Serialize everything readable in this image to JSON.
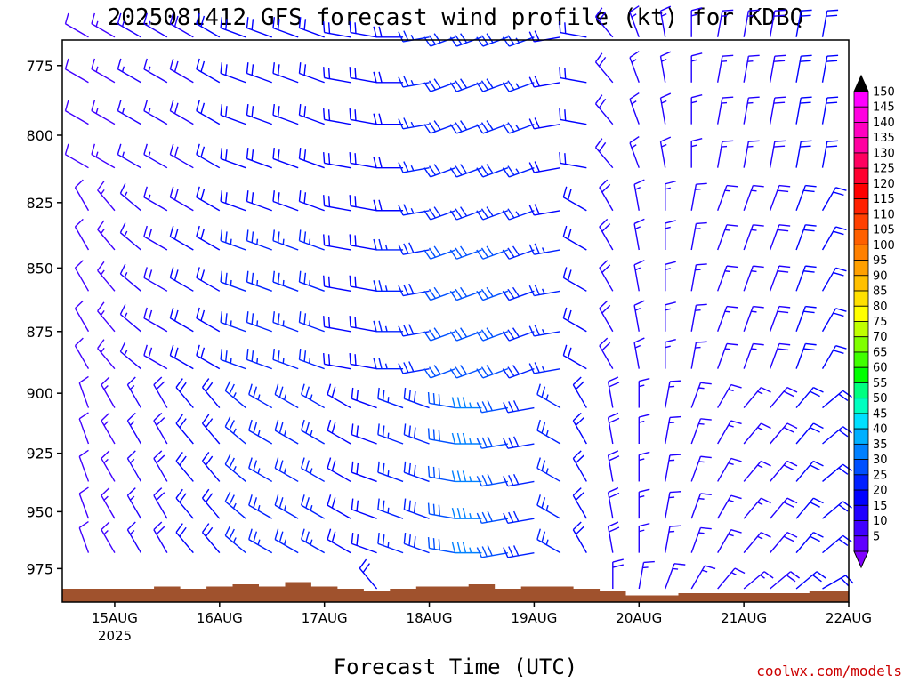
{
  "chart_data": {
    "type": "wind-barb-profile",
    "title": "2025081412 GFS forecast wind profile (kt) for KDBQ",
    "xlabel": "Forecast Time (UTC)",
    "x_tick_labels": [
      "15AUG",
      "16AUG",
      "17AUG",
      "18AUG",
      "19AUG",
      "20AUG",
      "21AUG",
      "22AUG"
    ],
    "x_tick_days": [
      15,
      16,
      17,
      18,
      19,
      20,
      21,
      22
    ],
    "x_sub_label": "2025",
    "x_range_days": [
      14.5,
      22.0
    ],
    "y_tick_labels": [
      "775",
      "800",
      "825",
      "850",
      "875",
      "900",
      "925",
      "950",
      "975"
    ],
    "y_ticks": [
      775,
      800,
      825,
      850,
      875,
      900,
      925,
      950,
      975
    ],
    "y_range": [
      766,
      990
    ],
    "y_axis_inverted": true,
    "y_scale": "log-pressure",
    "levels_hpa": [
      765,
      781,
      796,
      812,
      828,
      843,
      859,
      875,
      890,
      906,
      921,
      937,
      953,
      968,
      984
    ],
    "times_days": [
      14.5,
      14.75,
      15.0,
      15.25,
      15.5,
      15.75,
      16.0,
      16.25,
      16.5,
      16.75,
      17.0,
      17.25,
      17.5,
      17.75,
      18.0,
      18.25,
      18.5,
      18.75,
      19.0,
      19.25,
      19.5,
      19.75,
      20.0,
      20.25,
      20.5,
      20.75,
      21.0,
      21.25,
      21.5,
      21.75,
      22.0
    ],
    "wind_direction_deg": [
      [
        300,
        300,
        300,
        300,
        300,
        300,
        300,
        290,
        290,
        290,
        290,
        280,
        280,
        270,
        260,
        250,
        250,
        250,
        250,
        260,
        280,
        320,
        340,
        350,
        360,
        10,
        10,
        10,
        10,
        10,
        10
      ],
      [
        300,
        300,
        300,
        300,
        300,
        300,
        300,
        290,
        290,
        290,
        290,
        280,
        280,
        270,
        260,
        250,
        250,
        250,
        250,
        260,
        280,
        320,
        340,
        350,
        360,
        10,
        10,
        10,
        10,
        10,
        10
      ],
      [
        300,
        300,
        300,
        300,
        300,
        300,
        300,
        290,
        290,
        290,
        290,
        280,
        280,
        270,
        260,
        250,
        250,
        250,
        250,
        260,
        280,
        320,
        340,
        350,
        360,
        10,
        10,
        10,
        10,
        10,
        10
      ],
      [
        300,
        300,
        300,
        300,
        300,
        300,
        300,
        290,
        290,
        290,
        290,
        280,
        280,
        270,
        260,
        250,
        250,
        250,
        250,
        260,
        280,
        320,
        340,
        350,
        360,
        10,
        10,
        10,
        10,
        10,
        10
      ],
      [
        330,
        330,
        320,
        310,
        300,
        300,
        300,
        290,
        290,
        290,
        290,
        280,
        280,
        270,
        260,
        250,
        250,
        250,
        250,
        260,
        300,
        330,
        350,
        360,
        10,
        20,
        20,
        20,
        20,
        30,
        30
      ],
      [
        330,
        330,
        320,
        310,
        300,
        300,
        300,
        290,
        290,
        290,
        290,
        280,
        280,
        270,
        260,
        250,
        250,
        250,
        250,
        260,
        300,
        330,
        350,
        360,
        10,
        20,
        20,
        20,
        20,
        30,
        30
      ],
      [
        330,
        330,
        320,
        310,
        300,
        300,
        300,
        290,
        290,
        290,
        290,
        280,
        280,
        270,
        260,
        250,
        250,
        250,
        250,
        260,
        300,
        330,
        350,
        360,
        10,
        20,
        20,
        20,
        20,
        30,
        30
      ],
      [
        330,
        330,
        320,
        310,
        300,
        300,
        300,
        290,
        290,
        290,
        290,
        280,
        280,
        270,
        260,
        250,
        250,
        250,
        250,
        260,
        300,
        330,
        350,
        360,
        10,
        20,
        20,
        20,
        20,
        30,
        30
      ],
      [
        330,
        330,
        320,
        310,
        300,
        300,
        300,
        290,
        290,
        290,
        290,
        280,
        280,
        270,
        260,
        250,
        250,
        250,
        250,
        260,
        300,
        330,
        350,
        360,
        10,
        20,
        20,
        20,
        20,
        30,
        30
      ],
      [
        340,
        340,
        330,
        330,
        330,
        320,
        320,
        310,
        300,
        300,
        300,
        300,
        290,
        290,
        290,
        280,
        270,
        260,
        260,
        300,
        330,
        350,
        360,
        10,
        20,
        30,
        40,
        40,
        40,
        50,
        50
      ],
      [
        340,
        340,
        330,
        330,
        330,
        320,
        320,
        310,
        300,
        300,
        300,
        300,
        290,
        290,
        290,
        280,
        270,
        260,
        260,
        300,
        330,
        350,
        360,
        10,
        20,
        30,
        40,
        40,
        40,
        50,
        50
      ],
      [
        340,
        340,
        330,
        330,
        330,
        320,
        320,
        310,
        300,
        300,
        300,
        300,
        290,
        290,
        290,
        280,
        270,
        260,
        260,
        300,
        330,
        350,
        360,
        10,
        20,
        30,
        40,
        40,
        40,
        50,
        50
      ],
      [
        340,
        340,
        330,
        330,
        330,
        320,
        320,
        310,
        300,
        300,
        300,
        300,
        290,
        290,
        290,
        280,
        270,
        260,
        260,
        300,
        330,
        350,
        360,
        10,
        20,
        30,
        40,
        40,
        40,
        50,
        50
      ],
      [
        340,
        340,
        330,
        330,
        330,
        320,
        320,
        310,
        300,
        300,
        300,
        300,
        290,
        290,
        290,
        280,
        270,
        260,
        260,
        300,
        330,
        350,
        360,
        10,
        20,
        30,
        40,
        40,
        40,
        50,
        50
      ],
      [
        340,
        340,
        340,
        340,
        340,
        340,
        340,
        330,
        330,
        330,
        330,
        330,
        320,
        320,
        320,
        310,
        300,
        300,
        300,
        320,
        340,
        360,
        10,
        20,
        30,
        40,
        50,
        50,
        50,
        60,
        60
      ]
    ],
    "wind_speed_kt": [
      [
        10,
        12,
        14,
        15,
        16,
        18,
        20,
        22,
        22,
        22,
        22,
        20,
        20,
        22,
        25,
        28,
        28,
        28,
        25,
        22,
        20,
        18,
        15,
        15,
        15,
        15,
        15,
        18,
        20,
        20,
        20
      ],
      [
        10,
        12,
        14,
        15,
        16,
        18,
        20,
        22,
        22,
        22,
        22,
        20,
        20,
        22,
        25,
        28,
        28,
        28,
        25,
        22,
        20,
        18,
        15,
        15,
        15,
        15,
        15,
        18,
        20,
        20,
        20
      ],
      [
        10,
        12,
        14,
        15,
        16,
        18,
        20,
        22,
        22,
        22,
        22,
        20,
        20,
        22,
        25,
        28,
        28,
        28,
        25,
        22,
        20,
        18,
        15,
        15,
        15,
        15,
        15,
        18,
        20,
        20,
        20
      ],
      [
        10,
        12,
        14,
        15,
        16,
        18,
        20,
        22,
        22,
        22,
        22,
        20,
        20,
        22,
        25,
        28,
        28,
        28,
        25,
        22,
        20,
        18,
        15,
        15,
        15,
        15,
        15,
        18,
        20,
        20,
        20
      ],
      [
        10,
        12,
        14,
        15,
        16,
        18,
        20,
        22,
        22,
        22,
        22,
        20,
        20,
        22,
        25,
        28,
        28,
        28,
        25,
        22,
        20,
        18,
        15,
        15,
        15,
        15,
        15,
        18,
        20,
        20,
        20
      ],
      [
        10,
        12,
        14,
        15,
        18,
        20,
        22,
        25,
        25,
        25,
        25,
        22,
        22,
        25,
        28,
        30,
        30,
        30,
        28,
        25,
        20,
        18,
        15,
        15,
        15,
        15,
        15,
        18,
        20,
        20,
        20
      ],
      [
        10,
        12,
        14,
        15,
        18,
        20,
        22,
        25,
        25,
        25,
        25,
        22,
        22,
        25,
        28,
        30,
        30,
        30,
        28,
        25,
        20,
        18,
        15,
        15,
        15,
        15,
        15,
        18,
        20,
        20,
        20
      ],
      [
        10,
        12,
        14,
        15,
        18,
        20,
        22,
        25,
        25,
        25,
        25,
        22,
        22,
        25,
        28,
        30,
        30,
        30,
        28,
        25,
        20,
        18,
        15,
        15,
        15,
        15,
        15,
        18,
        20,
        20,
        20
      ],
      [
        10,
        12,
        14,
        15,
        18,
        20,
        22,
        25,
        25,
        25,
        25,
        22,
        22,
        25,
        28,
        30,
        30,
        30,
        28,
        25,
        20,
        18,
        15,
        15,
        15,
        15,
        15,
        18,
        20,
        20,
        20
      ],
      [
        10,
        12,
        14,
        15,
        18,
        20,
        22,
        25,
        25,
        25,
        25,
        22,
        22,
        25,
        28,
        32,
        35,
        32,
        28,
        25,
        20,
        18,
        15,
        15,
        15,
        15,
        15,
        18,
        20,
        20,
        20
      ],
      [
        10,
        12,
        14,
        15,
        18,
        20,
        22,
        25,
        25,
        25,
        25,
        22,
        22,
        25,
        28,
        32,
        35,
        32,
        28,
        25,
        20,
        18,
        15,
        15,
        15,
        15,
        15,
        18,
        20,
        20,
        20
      ],
      [
        10,
        12,
        14,
        15,
        18,
        20,
        22,
        25,
        25,
        25,
        25,
        22,
        22,
        25,
        28,
        32,
        35,
        32,
        28,
        25,
        20,
        18,
        15,
        15,
        15,
        15,
        15,
        18,
        20,
        20,
        20
      ],
      [
        10,
        12,
        14,
        15,
        18,
        20,
        22,
        25,
        25,
        25,
        25,
        22,
        22,
        25,
        28,
        32,
        35,
        32,
        28,
        25,
        20,
        18,
        15,
        15,
        15,
        15,
        15,
        18,
        20,
        20,
        20
      ],
      [
        10,
        12,
        14,
        15,
        18,
        20,
        22,
        25,
        25,
        25,
        25,
        22,
        22,
        25,
        28,
        32,
        35,
        32,
        28,
        25,
        20,
        18,
        15,
        15,
        15,
        15,
        15,
        18,
        20,
        20,
        20
      ],
      [
        10,
        12,
        14,
        15,
        18,
        20,
        22,
        25,
        25,
        25,
        25,
        22,
        22,
        25,
        28,
        32,
        35,
        32,
        28,
        25,
        20,
        18,
        15,
        15,
        15,
        15,
        15,
        18,
        20,
        20,
        20
      ]
    ],
    "surface_pressure_hpa": [
      984,
      984,
      984,
      984,
      983,
      984,
      983,
      982,
      983,
      981,
      983,
      984,
      985,
      984,
      983,
      983,
      982,
      984,
      983,
      983,
      984,
      985,
      987,
      987,
      986,
      986,
      986,
      986,
      986,
      985,
      985
    ],
    "colorbar": {
      "labels": [
        "150",
        "145",
        "140",
        "135",
        "130",
        "125",
        "120",
        "115",
        "110",
        "105",
        "100",
        "95",
        "90",
        "85",
        "80",
        "75",
        "70",
        "65",
        "60",
        "55",
        "50",
        "45",
        "40",
        "35",
        "30",
        "25",
        "20",
        "15",
        "10",
        "5"
      ],
      "colors": [
        "#ff00ff",
        "#ff00e0",
        "#ff00c0",
        "#ff00a0",
        "#ff0060",
        "#ff0030",
        "#ff0000",
        "#ff2000",
        "#ff4000",
        "#ff6000",
        "#ff8000",
        "#ffa000",
        "#ffc000",
        "#ffe000",
        "#ffff00",
        "#c0ff00",
        "#80ff00",
        "#40ff00",
        "#00ff00",
        "#00ff80",
        "#00ffc0",
        "#00e0ff",
        "#00b0ff",
        "#0080ff",
        "#0050ff",
        "#0020ff",
        "#0000ff",
        "#2000ff",
        "#4000ff",
        "#6000ff"
      ],
      "top_arrow_color": "#000000",
      "bottom_arrow_color": "#8000ff"
    },
    "terrain_color": "#a0522d"
  },
  "credit": "coolwx.com/models"
}
